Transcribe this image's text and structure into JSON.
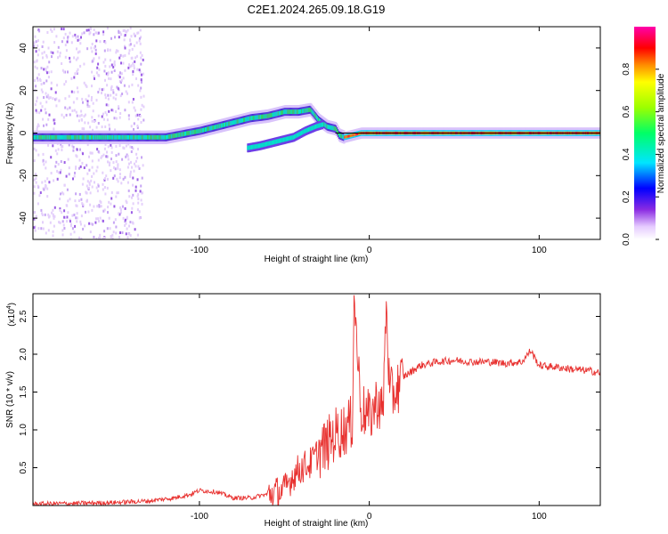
{
  "figure_title": "C2E1.2024.265.09.18.G19",
  "colors": {
    "snr_line": "#e8312f",
    "axis": "#000000",
    "spectrum_core": "#e0204a"
  },
  "chart_data": [
    {
      "type": "heatmap",
      "title": "C2E1.2024.265.09.18.G19",
      "xlabel": "Height of straight line (km)",
      "ylabel": "Frequency (Hz)",
      "xlim": [
        -198,
        136
      ],
      "ylim": [
        -50,
        50
      ],
      "xticks": [
        -100,
        0,
        100
      ],
      "xtick_labels": [
        "-100",
        "0",
        "100"
      ],
      "yticks": [
        -40,
        -20,
        0,
        20,
        40
      ],
      "ytick_labels": [
        "-40",
        "-20",
        "0",
        "20",
        "40"
      ],
      "colorbar": {
        "label": "Normalized spectral amplitude",
        "range": [
          0,
          1
        ],
        "ticks": [
          0.0,
          0.2,
          0.4,
          0.6,
          0.8
        ],
        "tick_labels": [
          "0.0",
          "0.2",
          "0.4",
          "0.6",
          "0.8"
        ]
      },
      "ridge": {
        "x": [
          -196,
          -180,
          -160,
          -140,
          -120,
          -100,
          -85,
          -70,
          -60,
          -50,
          -42,
          -35,
          -30,
          -25,
          -20,
          -18,
          -15,
          -10,
          -5,
          0,
          10,
          20,
          40,
          60,
          80,
          100,
          120,
          136
        ],
        "y": [
          -2,
          -2,
          -2,
          -2,
          -2,
          1,
          4,
          7,
          8,
          10,
          10,
          11,
          6,
          3,
          2,
          -1,
          -2,
          -1,
          0,
          0,
          0,
          0,
          0,
          0,
          0,
          0,
          0,
          0
        ]
      },
      "branch": {
        "x": [
          -72,
          -65,
          -55,
          -45,
          -38,
          -32,
          -28
        ],
        "y": [
          -7,
          -6,
          -4,
          -2,
          1,
          3,
          4
        ]
      },
      "noise_region_x": [
        -198,
        -133
      ]
    },
    {
      "type": "line",
      "xlabel": "Height of straight line (km)",
      "ylabel": "SNR (10 * v/v)",
      "multiplier_label": "(x10",
      "multiplier_exp": "4",
      "xlim": [
        -198,
        136
      ],
      "ylim": [
        0,
        2.8
      ],
      "xticks": [
        -100,
        0,
        100
      ],
      "xtick_labels": [
        "-100",
        "0",
        "100"
      ],
      "yticks": [
        0.5,
        1.0,
        1.5,
        2.0,
        2.5
      ],
      "ytick_labels": [
        "0.5",
        "1.0",
        "1.5",
        "2.0",
        "2.5"
      ],
      "series": [
        {
          "name": "SNR",
          "x": [
            -198,
            -170,
            -150,
            -130,
            -115,
            -105,
            -100,
            -90,
            -80,
            -70,
            -60,
            -50,
            -45,
            -40,
            -35,
            -30,
            -25,
            -20,
            -15,
            -10,
            -9,
            -5,
            0,
            5,
            8,
            10,
            12,
            15,
            20,
            30,
            40,
            50,
            60,
            70,
            80,
            90,
            95,
            100,
            110,
            120,
            130,
            136
          ],
          "y": [
            0.02,
            0.03,
            0.04,
            0.06,
            0.1,
            0.15,
            0.2,
            0.18,
            0.1,
            0.1,
            0.15,
            0.2,
            0.4,
            0.5,
            0.55,
            0.7,
            0.8,
            0.95,
            1.0,
            1.1,
            2.78,
            1.3,
            1.15,
            1.4,
            1.2,
            2.7,
            1.45,
            1.5,
            1.7,
            1.85,
            1.9,
            1.92,
            1.9,
            1.9,
            1.88,
            1.9,
            2.05,
            1.85,
            1.83,
            1.8,
            1.78,
            1.75
          ]
        }
      ]
    }
  ]
}
